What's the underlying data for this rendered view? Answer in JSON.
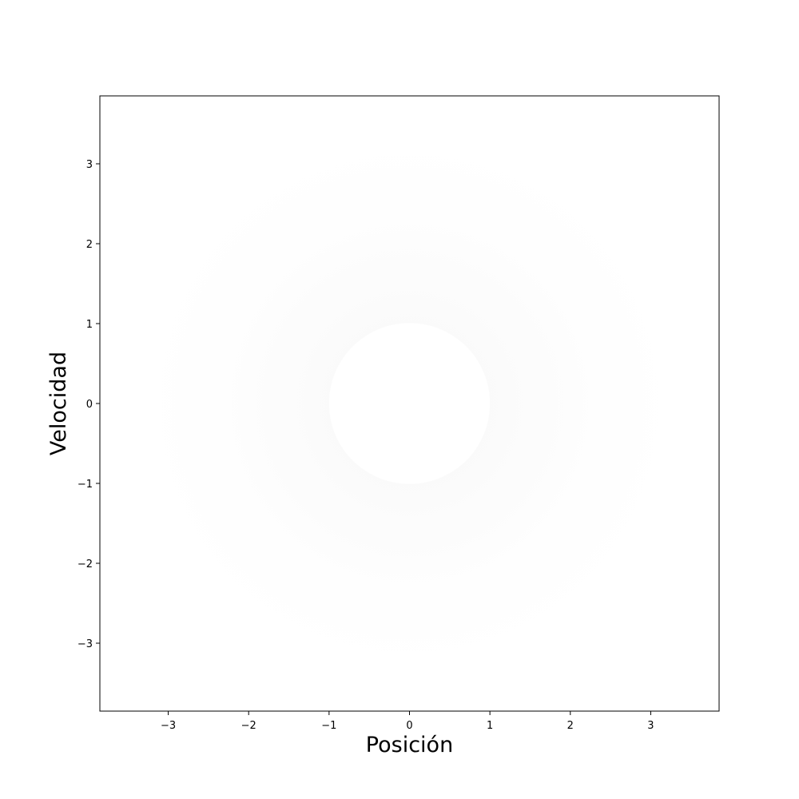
{
  "chart_data": {
    "type": "heatmap",
    "title": "",
    "xlabel": "Posición",
    "ylabel": "Velocidad",
    "xlim": [
      -3.85,
      3.85
    ],
    "ylim": [
      -3.85,
      3.85
    ],
    "xticks": [
      -3,
      -2,
      -1,
      0,
      1,
      2,
      3
    ],
    "yticks": [
      -3,
      -2,
      -1,
      0,
      1,
      2,
      3
    ],
    "xtick_labels": [
      "−3",
      "−2",
      "−1",
      "0",
      "1",
      "2",
      "3"
    ],
    "ytick_labels": [
      "−3",
      "−2",
      "−1",
      "0",
      "1",
      "2",
      "3"
    ],
    "grid": false,
    "center": [
      0,
      0
    ],
    "empty_radius": 1.0,
    "shading_outer_radius": 3.3,
    "shading_peak_radius": 1.4,
    "colors": {
      "shading": "#9a9a9a",
      "frame": "#000000",
      "background": "#ffffff"
    }
  }
}
